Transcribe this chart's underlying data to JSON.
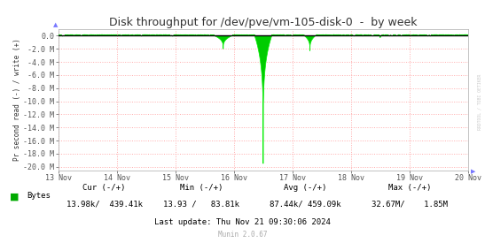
{
  "title": "Disk throughput for /dev/pve/vm-105-disk-0  -  by week",
  "ylabel": "Pr second read (-) / write (+)",
  "background_color": "#FFFFFF",
  "plot_bg_color": "#FFFFFF",
  "grid_color": "#FFAAAA",
  "grid_linestyle": ":",
  "ylim_min": -20500000,
  "ylim_max": 1000000,
  "yticks": [
    0,
    -2000000,
    -4000000,
    -6000000,
    -8000000,
    -10000000,
    -12000000,
    -14000000,
    -16000000,
    -18000000,
    -20000000
  ],
  "ytick_labels": [
    "0.0",
    "-2.0 M",
    "-4.0 M",
    "-6.0 M",
    "-8.0 M",
    "-10.0 M",
    "-12.0 M",
    "-14.0 M",
    "-16.0 M",
    "-18.0 M",
    "-20.0 M"
  ],
  "xticklabels": [
    "13 Nov",
    "14 Nov",
    "15 Nov",
    "16 Nov",
    "17 Nov",
    "18 Nov",
    "19 Nov",
    "20 Nov"
  ],
  "xtick_positions": [
    0,
    1,
    2,
    3,
    4,
    5,
    6,
    7
  ],
  "line_color": "#00EE00",
  "zero_line_color": "#000000",
  "fill_color": "#00CC00",
  "legend_label": "Bytes",
  "legend_color": "#00AA00",
  "cur_label": "Cur (-/+)",
  "cur_val": "13.98k/  439.41k",
  "min_label": "Min (-/+)",
  "min_val": "13.93 /   83.81k",
  "avg_label": "Avg (-/+)",
  "avg_val": "87.44k/ 459.09k",
  "max_label": "Max (-/+)",
  "max_val": "32.67M/    1.85M",
  "last_update": "Last update: Thu Nov 21 09:30:06 2024",
  "munin_version": "Munin 2.0.67",
  "right_label": "RRDTOOL / TOBI OETIKER",
  "border_color": "#AAAAAA",
  "tick_color": "#555555",
  "text_color": "#333333",
  "title_fontsize": 9,
  "axis_fontsize": 6,
  "legend_fontsize": 6.5
}
